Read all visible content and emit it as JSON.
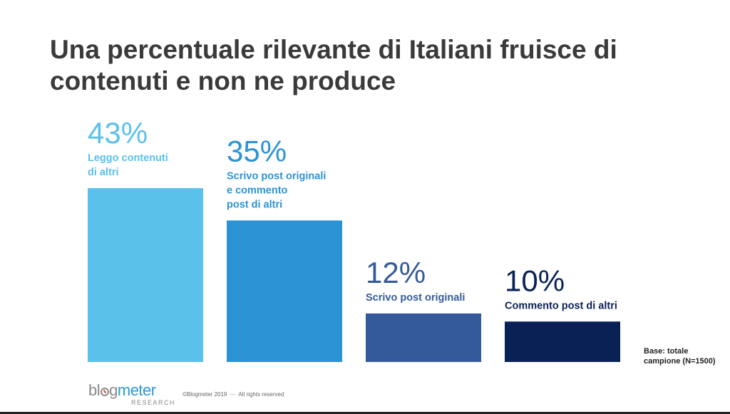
{
  "title": {
    "line1": "Una percentuale rilevante di Italiani fruisce di",
    "line2": "contenuti e non ne produce"
  },
  "chart_data": {
    "type": "bar",
    "categories": [
      [
        "Leggo contenuti",
        "di altri"
      ],
      [
        "Scrivo post originali",
        "e commento",
        "post di altri"
      ],
      [
        "Scrivo post originali"
      ],
      [
        "Commento post di altri"
      ]
    ],
    "values": [
      43,
      35,
      12,
      10
    ],
    "value_labels": [
      "43%",
      "35%",
      "12%",
      "10%"
    ],
    "colors": [
      "#5ac1ea",
      "#2b93d4",
      "#355a9b",
      "#0a2156"
    ],
    "ylim": [
      0,
      45
    ],
    "grid": false
  },
  "note": {
    "line1": "Base: totale",
    "line2": "campione (N=1500)"
  },
  "footer": {
    "logo_blog_1": "bl",
    "logo_blog_2": "g",
    "logo_meter": "meter",
    "logo_sub": "RESEARCH",
    "copyright": "©Blogmeter 2019",
    "separator": "—",
    "rights": "All rights reserved"
  }
}
